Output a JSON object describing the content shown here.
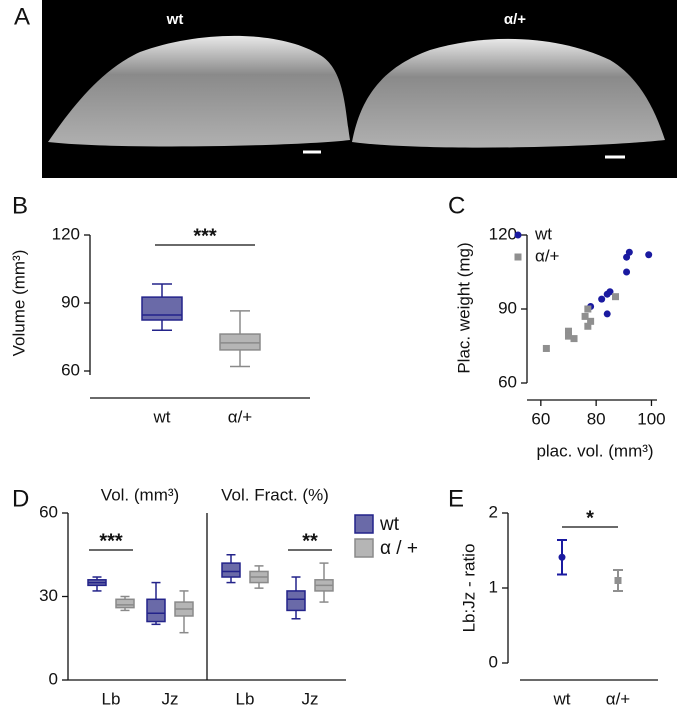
{
  "figure": {
    "label": "A",
    "captions": [
      "wt",
      "α/+"
    ]
  },
  "chart_data": [
    {
      "type": "box",
      "label": "B",
      "ylabel": "Volume (mm³)",
      "categories": [
        "wt",
        "α/+"
      ],
      "colors": [
        "#6a6aa8",
        "#b5b5b5"
      ],
      "edge_colors": [
        "#23238a",
        "#8a8a8a"
      ],
      "boxes": [
        {
          "min": 78,
          "q1": 82.5,
          "median": 84.7,
          "q3": 92.6,
          "max": 98.4
        },
        {
          "min": 62,
          "q1": 69.3,
          "median": 72.4,
          "q3": 76.3,
          "max": 86.5
        }
      ],
      "ylim": [
        60,
        120
      ],
      "yticks": [
        60,
        90,
        120
      ],
      "significance": "***"
    },
    {
      "type": "scatter",
      "label": "C",
      "xlabel": "plac. vol. (mm³)",
      "ylabel": "Plac. weight (mg)",
      "series": [
        {
          "name": "wt",
          "color": "#1a1aa0",
          "marker": "circle",
          "x": [
            92,
            91,
            91,
            99,
            82,
            84,
            85,
            84,
            78
          ],
          "y": [
            113,
            111,
            105,
            112,
            94,
            96,
            97,
            88,
            91
          ]
        },
        {
          "name": "α/+",
          "color": "#8f8f8f",
          "marker": "square",
          "x": [
            62,
            70,
            70,
            72,
            76,
            77,
            77,
            78,
            87
          ],
          "y": [
            74,
            81,
            79,
            78,
            87,
            90,
            83,
            85,
            95
          ]
        }
      ],
      "xlim": [
        55,
        102
      ],
      "xticks": [
        60,
        80,
        100
      ],
      "ylim": [
        60,
        120
      ],
      "yticks": [
        60,
        90,
        120
      ]
    },
    {
      "type": "grouped-box",
      "label": "D",
      "series": [
        {
          "name": "wt",
          "color": "#6a6aa8",
          "edge_color": "#23238a"
        },
        {
          "name": "α / +",
          "color": "#b5b5b5",
          "edge_color": "#8a8a8a"
        }
      ],
      "panels": [
        {
          "title": "Vol. (mm³)",
          "categories": [
            "Lb",
            "Jz"
          ],
          "significance": [
            "***",
            null
          ],
          "boxes": [
            [
              {
                "min": 32,
                "q1": 34,
                "median": 35,
                "q3": 36,
                "max": 37
              },
              {
                "min": 20,
                "q1": 21,
                "median": 24,
                "q3": 29,
                "max": 35
              }
            ],
            [
              {
                "min": 25,
                "q1": 26,
                "median": 27,
                "q3": 29,
                "max": 30
              },
              {
                "min": 17,
                "q1": 23,
                "median": 25.5,
                "q3": 28,
                "max": 32
              }
            ]
          ]
        },
        {
          "title": "Vol. Fract. (%)",
          "categories": [
            "Lb",
            "Jz"
          ],
          "significance": [
            null,
            "**"
          ],
          "boxes": [
            [
              {
                "min": 35,
                "q1": 37,
                "median": 39,
                "q3": 42,
                "max": 45
              },
              {
                "min": 22,
                "q1": 25,
                "median": 29,
                "q3": 32,
                "max": 37
              }
            ],
            [
              {
                "min": 33,
                "q1": 35,
                "median": 37,
                "q3": 39,
                "max": 41
              },
              {
                "min": 28,
                "q1": 32,
                "median": 34,
                "q3": 36,
                "max": 42
              }
            ]
          ]
        }
      ],
      "ylim": [
        0,
        60
      ],
      "yticks": [
        0,
        30,
        60
      ]
    },
    {
      "type": "errorbar",
      "label": "E",
      "ylabel": "Lb:Jz - ratio",
      "categories": [
        "wt",
        "α/+"
      ],
      "values": [
        1.41,
        1.1
      ],
      "errors": [
        0.23,
        0.14
      ],
      "colors": [
        "#1a1aa0",
        "#8f8f8f"
      ],
      "markers": [
        "circle",
        "square"
      ],
      "ylim": [
        0,
        2
      ],
      "yticks": [
        0,
        1,
        2
      ],
      "significance": "*"
    }
  ]
}
